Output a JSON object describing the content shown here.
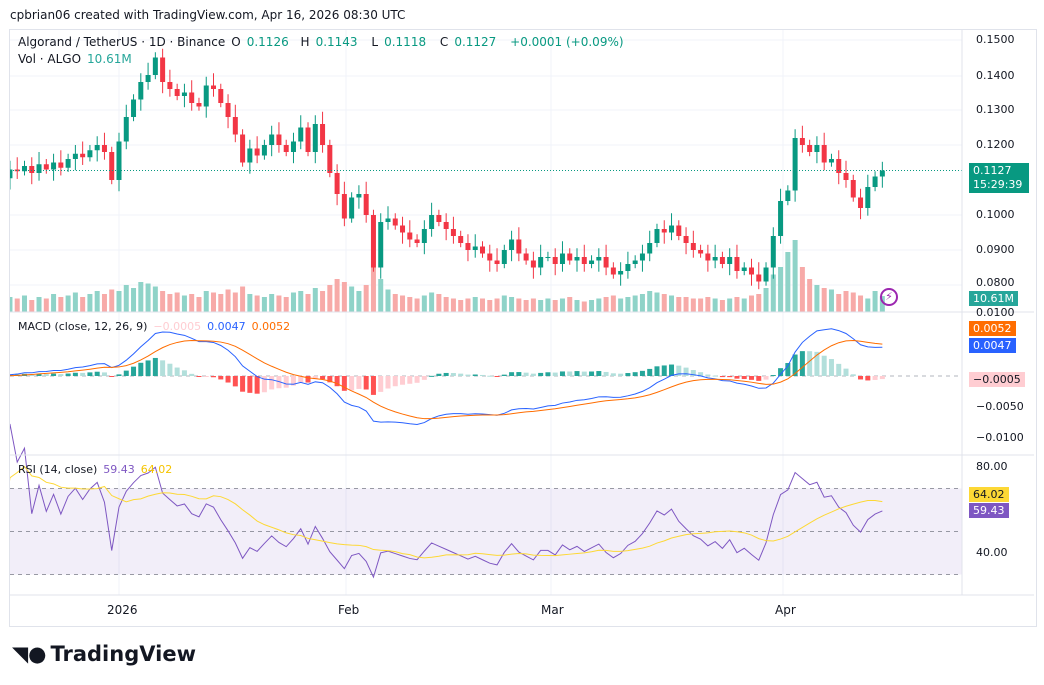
{
  "header": {
    "attribution": "cpbrian06 created with TradingView.com, Apr 16, 2026 08:30 UTC"
  },
  "legend": {
    "symbol": "Algorand / TetherUS · 1D · Binance",
    "o_label": "O",
    "o": "0.1126",
    "h_label": "H",
    "h": "0.1143",
    "l_label": "L",
    "l": "0.1118",
    "c_label": "C",
    "c": "0.1127",
    "change": "+0.0001 (+0.09%)",
    "vol_label": "Vol · ALGO",
    "vol": "10.61M"
  },
  "macd_legend": {
    "label": "MACD (close, 12, 26, 9)",
    "hist": "−0.0005",
    "macd": "0.0047",
    "signal": "0.0052"
  },
  "rsi_legend": {
    "label": "RSI (14, close)",
    "rsi": "59.43",
    "ma": "64.02"
  },
  "price_axis": [
    "0.1500",
    "0.1400",
    "0.1300",
    "0.1200",
    "0.1000",
    "0.0900",
    "0.0800"
  ],
  "macd_axis": [
    "0.0100",
    "−0.0050",
    "−0.0100"
  ],
  "rsi_axis": [
    "80.00",
    "40.00"
  ],
  "time_axis": [
    "2026",
    "Feb",
    "Mar",
    "Apr"
  ],
  "tags": {
    "last_price": "0.1127",
    "countdown": "15:29:39",
    "volume": "10.61M",
    "signal": "0.0052",
    "macd": "0.0047",
    "hist": "−0.0005",
    "rsi_ma": "64.02",
    "rsi": "59.43"
  },
  "footer": {
    "logo": "TradingView"
  },
  "colors": {
    "up": "#089981",
    "down": "#f23645",
    "macd": "#2962ff",
    "signal": "#ff6d00",
    "rsi": "#7e57c2",
    "rsi_ma": "#fdd835"
  },
  "chart_data": {
    "type": "candlestick",
    "interval": "1D",
    "x_range": [
      "2025-12-16",
      "2026-04-16"
    ],
    "ylim": [
      0.0775,
      0.1525
    ],
    "close": [
      0.1105,
      0.113,
      0.1125,
      0.114,
      0.112,
      0.1145,
      0.113,
      0.115,
      0.1135,
      0.116,
      0.1175,
      0.1165,
      0.1185,
      0.12,
      0.118,
      0.11,
      0.121,
      0.128,
      0.133,
      0.138,
      0.14,
      0.145,
      0.138,
      0.136,
      0.134,
      0.135,
      0.132,
      0.131,
      0.137,
      0.136,
      0.132,
      0.128,
      0.123,
      0.115,
      0.119,
      0.117,
      0.12,
      0.123,
      0.12,
      0.118,
      0.121,
      0.125,
      0.118,
      0.126,
      0.12,
      0.112,
      0.106,
      0.099,
      0.105,
      0.106,
      0.1,
      0.085,
      0.098,
      0.099,
      0.097,
      0.095,
      0.093,
      0.092,
      0.096,
      0.1,
      0.098,
      0.096,
      0.094,
      0.092,
      0.09,
      0.091,
      0.089,
      0.087,
      0.086,
      0.09,
      0.093,
      0.089,
      0.087,
      0.085,
      0.088,
      0.088,
      0.086,
      0.089,
      0.087,
      0.088,
      0.086,
      0.087,
      0.088,
      0.085,
      0.083,
      0.084,
      0.086,
      0.087,
      0.089,
      0.092,
      0.096,
      0.095,
      0.097,
      0.094,
      0.092,
      0.09,
      0.089,
      0.087,
      0.088,
      0.086,
      0.088,
      0.084,
      0.085,
      0.083,
      0.081,
      0.085,
      0.094,
      0.104,
      0.107,
      0.122,
      0.12,
      0.118,
      0.12,
      0.115,
      0.116,
      0.112,
      0.11,
      0.105,
      0.102,
      0.108,
      0.111,
      0.1127
    ],
    "first_open": 0.114,
    "volume_m": [
      12,
      10,
      9,
      11,
      8,
      10,
      9,
      12,
      10,
      11,
      13,
      10,
      12,
      14,
      12,
      15,
      14,
      18,
      16,
      20,
      19,
      17,
      14,
      12,
      13,
      11,
      12,
      10,
      14,
      13,
      12,
      15,
      13,
      17,
      12,
      11,
      10,
      12,
      11,
      10,
      13,
      14,
      12,
      16,
      14,
      18,
      22,
      20,
      17,
      14,
      18,
      30,
      22,
      15,
      12,
      11,
      10,
      9,
      11,
      13,
      12,
      10,
      9,
      8,
      9,
      10,
      9,
      8,
      9,
      11,
      10,
      9,
      8,
      9,
      8,
      9,
      8,
      9,
      10,
      8,
      7,
      8,
      9,
      10,
      11,
      9,
      10,
      11,
      12,
      14,
      13,
      12,
      11,
      10,
      10,
      9,
      9,
      10,
      9,
      8,
      9,
      10,
      9,
      11,
      12,
      16,
      25,
      30,
      40,
      48,
      30,
      22,
      18,
      16,
      15,
      12,
      14,
      13,
      11,
      9,
      14,
      10.61
    ],
    "macd_params": [
      12,
      26,
      9
    ],
    "rsi_params": [
      14
    ],
    "rsi_levels": [
      70,
      50,
      30
    ]
  }
}
